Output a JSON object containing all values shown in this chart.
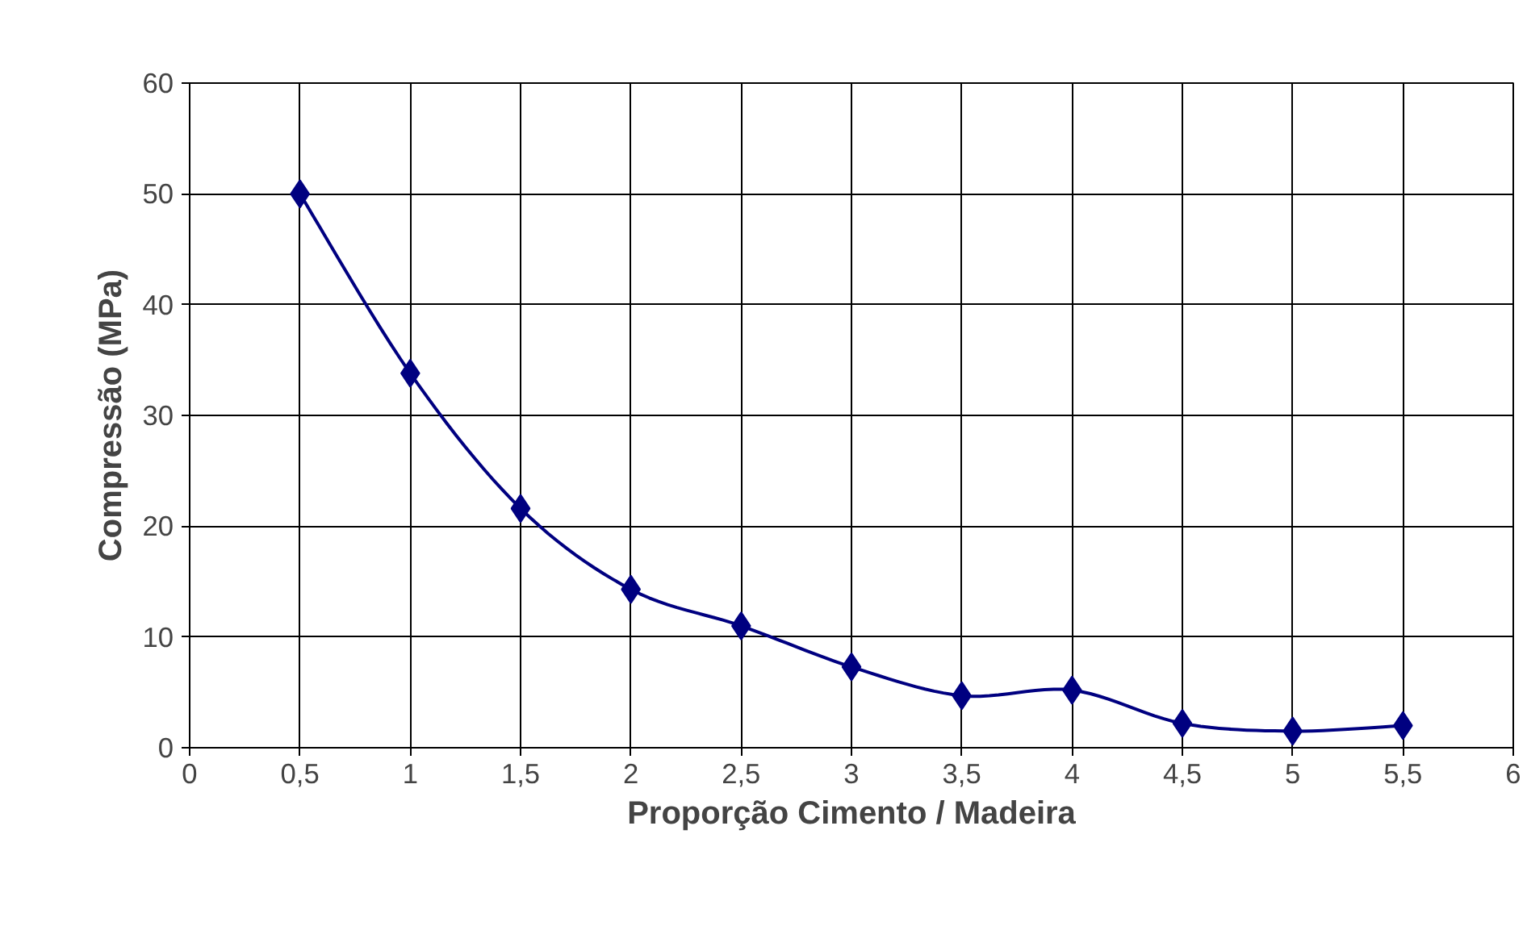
{
  "chart_data": {
    "type": "line",
    "xlabel": "Proporção Cimento / Madeira",
    "ylabel": "Compressão (MPa)",
    "x": [
      0.5,
      1,
      1.5,
      2,
      2.5,
      3,
      3.5,
      4,
      4.5,
      5,
      5.5
    ],
    "series": [
      {
        "color": "#000080",
        "values": [
          50,
          33.8,
          21.6,
          14.3,
          11,
          7.3,
          4.7,
          5.2,
          2.2,
          1.5,
          2
        ]
      }
    ],
    "xlim": [
      0,
      6
    ],
    "ylim": [
      0,
      60
    ],
    "xticks": [
      0,
      {
        "value": 0.5,
        "label": "0,5"
      },
      1,
      {
        "value": 1.5,
        "label": "1,5"
      },
      2,
      {
        "value": 2.5,
        "label": "2,5"
      },
      3,
      {
        "value": 3.5,
        "label": "3,5"
      },
      4,
      {
        "value": 4.5,
        "label": "4,5"
      },
      5,
      {
        "value": 5.5,
        "label": "5,5"
      },
      6
    ],
    "yticks": [
      0,
      10,
      20,
      30,
      40,
      50,
      60
    ],
    "grid": true,
    "marker": "diamond",
    "line_style": "solid"
  }
}
